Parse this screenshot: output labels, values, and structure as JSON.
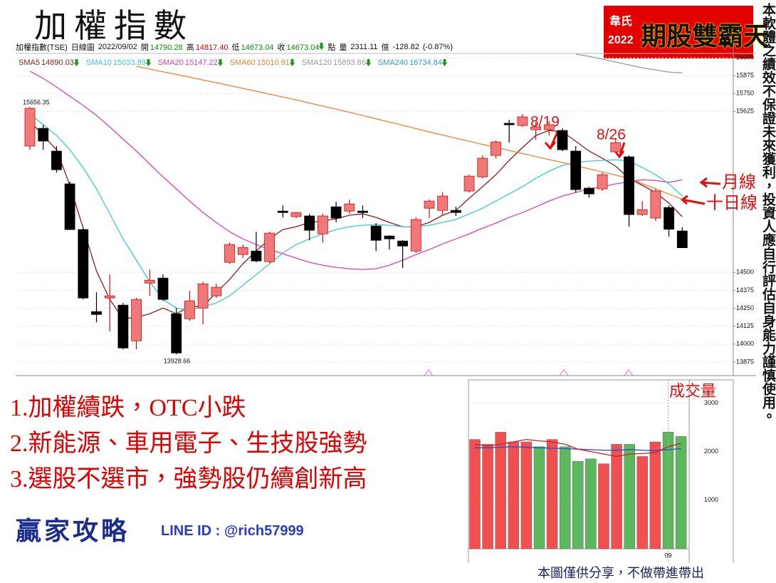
{
  "header": {
    "title": "加權指數",
    "brand": {
      "name": "韋氏",
      "year": "2022",
      "product": "期股雙霸天"
    }
  },
  "disclaimer": "本軟體之績效不保證未來獲利，投資人應自行評估自身能力謹慎使用。",
  "chart_data": [
    {
      "type": "candlestick",
      "symbol": "加權指數(TSE)",
      "period": "日線圖",
      "date": "2022/09/02",
      "quote": [
        {
          "label": "開",
          "value": "14790.28",
          "color": "#0a8a0a"
        },
        {
          "label": "高",
          "value": "14817.40",
          "color": "#d00000"
        },
        {
          "label": "低",
          "value": "14673.04",
          "color": "#0a8a0a"
        },
        {
          "label": "收",
          "value": "14673.04",
          "color": "#0a8a0a",
          "direction": "down"
        }
      ],
      "unit": "點",
      "volume": {
        "label": "量",
        "value": "2311.11",
        "unit": "億"
      },
      "change": "-128.82",
      "change_pct": "(-0.87%)",
      "up_color": "#f07878",
      "up_line": "#cc1010",
      "down_color": "#000000",
      "open": [
        15383,
        15507,
        15348,
        15119,
        14800,
        14227,
        14322,
        14272,
        14023,
        14426,
        14461,
        14212,
        14177,
        14252,
        14337,
        14571,
        14626,
        14650,
        14576,
        14929,
        14890,
        14895,
        14770,
        14959,
        14929,
        14929,
        14825,
        14755,
        14720,
        14650,
        14949,
        14934,
        14934,
        15069,
        15168,
        15318,
        15542,
        15527,
        15497,
        15497,
        15492,
        15348,
        15089,
        15084,
        15343,
        15308,
        14905,
        14880,
        14954,
        14790.28
      ],
      "high": [
        15656.35,
        15532,
        15383,
        15134,
        14810,
        14362,
        14486,
        14287,
        14322,
        14521,
        14486,
        14252,
        14372,
        14436,
        14421,
        14710,
        14695,
        14785,
        14785,
        14969,
        14924,
        14910,
        14910,
        14994,
        15009,
        14969,
        14845,
        14760,
        14725,
        14885,
        15009,
        15059,
        14959,
        15183,
        15318,
        15422,
        15567,
        15607,
        15547,
        15557,
        15507,
        15383,
        15099,
        15198,
        15432,
        15318,
        14999,
        15084,
        14969,
        14817.4
      ],
      "low": [
        15358,
        15358,
        15198,
        14800,
        14312,
        14152,
        14088,
        13963,
        13963,
        14337,
        14302,
        13928.66,
        14162,
        14138,
        14322,
        14561,
        14601,
        14571,
        14566,
        14885,
        14880,
        14725,
        14710,
        14850,
        14910,
        14880,
        14650,
        14660,
        14531,
        14636,
        14880,
        14900,
        14895,
        15059,
        15158,
        15298,
        15407,
        15517,
        15427,
        15457,
        15348,
        15059,
        15024,
        15069,
        15333,
        14820,
        14895,
        14860,
        14750,
        14673.04
      ],
      "close": [
        15647,
        15418,
        15218,
        14800,
        14322,
        14207,
        14337,
        13973,
        14312,
        14446,
        14312,
        13938,
        14302,
        14421,
        14397,
        14695,
        14675,
        14581,
        14775,
        14919,
        14919,
        14795,
        14895,
        14880,
        14979,
        14919,
        14725,
        14735,
        14685,
        14870,
        14999,
        15034,
        14919,
        15173,
        15298,
        15412,
        15532,
        15587,
        15517,
        15532,
        15358,
        15079,
        15049,
        15183,
        15407,
        14905,
        14939,
        15069,
        14802,
        14673.04
      ],
      "series": [
        {
          "name": "SMA5",
          "color": "#8b1c1c",
          "last": 14890.03,
          "direction": "down",
          "values": [
            15557,
            15457,
            15358,
            15109,
            14810,
            14511,
            14312,
            14177,
            14187,
            14212,
            14252,
            14212,
            14262,
            14262,
            14362,
            14451,
            14561,
            14650,
            14735,
            14800,
            14820,
            14850,
            14860,
            14875,
            14900,
            14910,
            14885,
            14850,
            14820,
            14820,
            14850,
            14900,
            14934,
            15019,
            15099,
            15183,
            15283,
            15373,
            15457,
            15492,
            15482,
            15417,
            15348,
            15298,
            15243,
            15158,
            15109,
            15059,
            14984,
            14890.03
          ]
        },
        {
          "name": "SMA10",
          "color": "#3cc8c8",
          "last": 15033.89,
          "direction": "down",
          "values": [
            15607,
            15532,
            15457,
            15358,
            15233,
            15084,
            14910,
            14735,
            14586,
            14436,
            14312,
            14252,
            14237,
            14262,
            14287,
            14337,
            14411,
            14486,
            14561,
            14636,
            14695,
            14735,
            14770,
            14800,
            14820,
            14830,
            14835,
            14830,
            14820,
            14820,
            14830,
            14850,
            14870,
            14910,
            14949,
            14999,
            15049,
            15099,
            15158,
            15208,
            15248,
            15268,
            15278,
            15283,
            15288,
            15278,
            15233,
            15183,
            15119,
            15033.89
          ]
        },
        {
          "name": "SMA20",
          "color": "#e040b0",
          "last": 15147.22,
          "direction": "down",
          "values": [
            15906,
            15856,
            15796,
            15731,
            15667,
            15597,
            15517,
            15432,
            15348,
            15258,
            15168,
            15084,
            14999,
            14919,
            14850,
            14785,
            14735,
            14695,
            14660,
            14631,
            14601,
            14571,
            14551,
            14536,
            14526,
            14521,
            14526,
            14551,
            14586,
            14626,
            14660,
            14700,
            14735,
            14770,
            14810,
            14845,
            14885,
            14919,
            14959,
            14999,
            15034,
            15059,
            15084,
            15099,
            15119,
            15134,
            15148,
            15143,
            15129,
            15147.22
          ]
        },
        {
          "name": "SMA60",
          "color": "#f08030",
          "last": 15010.91,
          "direction": "down",
          "values": [
            null,
            null,
            null,
            null,
            null,
            null,
            null,
            null,
            15940,
            15921,
            15902,
            15883,
            15864,
            15845,
            15826,
            15806,
            15786,
            15766,
            15746,
            15726,
            15706,
            15684,
            15662,
            15641,
            15619,
            15597,
            15574,
            15551,
            15528,
            15505,
            15482,
            15460,
            15438,
            15417,
            15395,
            15373,
            15352,
            15331,
            15310,
            15289,
            15268,
            15246,
            15224,
            15202,
            15180,
            15158,
            15121,
            15084,
            15048,
            15010.91
          ]
        },
        {
          "name": "SMA120",
          "color": "#999999",
          "last": 15893.86,
          "direction": "down",
          "values": [
            null,
            null,
            null,
            null,
            null,
            null,
            null,
            null,
            null,
            null,
            null,
            null,
            null,
            null,
            null,
            null,
            null,
            null,
            null,
            null,
            null,
            null,
            null,
            null,
            null,
            null,
            null,
            null,
            null,
            null,
            null,
            null,
            null,
            null,
            null,
            null,
            null,
            null,
            null,
            null,
            null,
            16025,
            16010,
            15990,
            15970,
            15950,
            15930,
            15915,
            15900,
            15893.86
          ]
        },
        {
          "name": "SMA240",
          "color": "#2aa0c8",
          "last": 16734.84,
          "direction": "down",
          "values": [
            null,
            null,
            null,
            null,
            null,
            null,
            null,
            null,
            null,
            null,
            null,
            null,
            null,
            null,
            null,
            null,
            null,
            null,
            null,
            null,
            null,
            null,
            null,
            null,
            null,
            null,
            null,
            null,
            null,
            null,
            null,
            null,
            null,
            null,
            null,
            null,
            null,
            null,
            null,
            null,
            null,
            null,
            null,
            null,
            null,
            null,
            null,
            null,
            null,
            null
          ]
        }
      ],
      "annotations": [
        "8/19",
        "8/26",
        "月線",
        "十日線"
      ],
      "ylim": [
        13790,
        16030
      ],
      "yticks": [
        16000,
        15875,
        15750,
        15625,
        14500,
        14375,
        14250,
        14125,
        14000,
        13875
      ],
      "grid": true
    },
    {
      "type": "bar",
      "title": "成交量",
      "categories": [
        null,
        null,
        null,
        null,
        null,
        null,
        null,
        null,
        null,
        null,
        null,
        null,
        null,
        null,
        null,
        "09",
        null
      ],
      "values": [
        2250,
        2150,
        2400,
        2200,
        2200,
        2100,
        2250,
        2100,
        1800,
        1850,
        1750,
        2150,
        2150,
        1900,
        2200,
        2400,
        2311.11
      ],
      "colors": [
        "#f05050",
        "#f05050",
        "#f05050",
        "#f05050",
        "#f05050",
        "#5cb85c",
        "#f05050",
        "#5cb85c",
        "#5cb85c",
        "#5cb85c",
        "#f05050",
        "#f05050",
        "#5cb85c",
        "#f05050",
        "#f05050",
        "#5cb85c",
        "#5cb85c"
      ],
      "lines": [
        {
          "color": "#2050d0",
          "values": [
            2080,
            2080,
            2090,
            2100,
            2090,
            2080,
            2070,
            2060,
            2050,
            2040,
            2030,
            2030,
            2040,
            2030,
            2020,
            2040,
            2060
          ]
        },
        {
          "color": "#d02020",
          "values": [
            2150,
            2120,
            2150,
            2200,
            2250,
            2220,
            2200,
            2150,
            2050,
            2000,
            1950,
            1900,
            1950,
            1960,
            1980,
            2100,
            2170
          ]
        }
      ],
      "ylim": [
        0,
        3300
      ],
      "yticks": [
        1000,
        2000,
        3000
      ],
      "grid": true
    }
  ],
  "notes": [
    "1.加權續跌，OTC小跌",
    "2.新能源、車用電子、生技股強勢",
    "3.選股不選市，強勢股仍續創新高"
  ],
  "footer": {
    "brand": "贏家攻略",
    "line_id": "LINE ID : @rich57999",
    "share": "本圖僅供分享，不做帶進帶出"
  }
}
